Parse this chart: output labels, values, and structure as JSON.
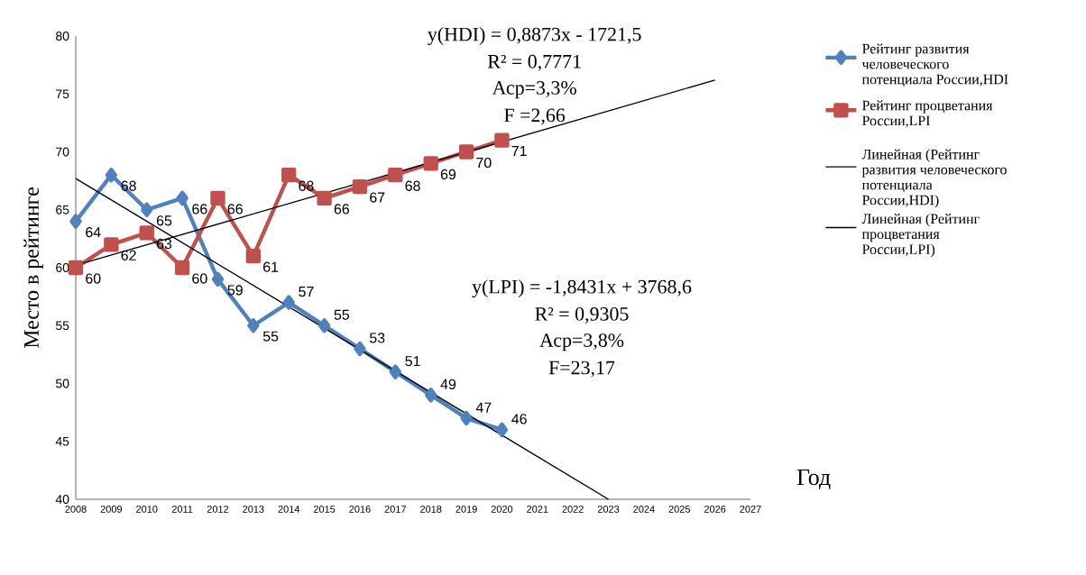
{
  "chart_data": {
    "type": "line",
    "ylabel": "Место в рейтинге",
    "xlabel": "Год",
    "x": [
      2008,
      2009,
      2010,
      2011,
      2012,
      2013,
      2014,
      2015,
      2016,
      2017,
      2018,
      2019,
      2020
    ],
    "series": [
      {
        "name": "Рейтинг развития человеческого потенциала России,HDI",
        "color": "#4f81bd",
        "marker": "diamond",
        "values": [
          64,
          68,
          65,
          66,
          59,
          55,
          57,
          55,
          53,
          51,
          49,
          47,
          46
        ],
        "value_labels": [
          "64",
          "68",
          "65",
          "66",
          "59",
          "55",
          "57",
          "55",
          "53",
          "51",
          "49",
          "47",
          "46"
        ]
      },
      {
        "name": "Рейтинг процветания России,LPI",
        "color": "#c0504d",
        "marker": "square",
        "values": [
          60,
          62,
          63,
          60,
          66,
          61,
          68,
          66,
          67,
          68,
          69,
          70,
          71
        ],
        "value_labels": [
          "60",
          "62",
          "63",
          "60",
          "66",
          "61",
          "68",
          "66",
          "67",
          "68",
          "69",
          "70",
          "71"
        ]
      },
      {
        "name": "Линейная (Рейтинг развития человеческого потенциала России,HDI)",
        "color": "#000000",
        "marker": "none",
        "x": [
          2008,
          2023
        ],
        "values": [
          67.7,
          40
        ]
      },
      {
        "name": "Линейная (Рейтинг процветания России,LPI)",
        "color": "#000000",
        "marker": "none",
        "x": [
          2008,
          2026
        ],
        "values": [
          60.2,
          76.2
        ]
      }
    ],
    "xlim": [
      2008,
      2027
    ],
    "xticks": [
      2008,
      2009,
      2010,
      2011,
      2012,
      2013,
      2014,
      2015,
      2016,
      2017,
      2018,
      2019,
      2020,
      2021,
      2022,
      2023,
      2024,
      2025,
      2026,
      2027
    ],
    "ylim": [
      40,
      80
    ],
    "yticks": [
      40,
      45,
      50,
      55,
      60,
      65,
      70,
      75,
      80
    ],
    "legend": "right",
    "grid": false,
    "annotations": [
      "y(HDI) = 0,8873x - 1721,5",
      "R² = 0,7771",
      "Аср=3,3%",
      "F =2,66",
      "y(LPI) = -1,8431x + 3768,6",
      "R² = 0,9305",
      "Аср=3,8%",
      "F=23,17"
    ]
  }
}
